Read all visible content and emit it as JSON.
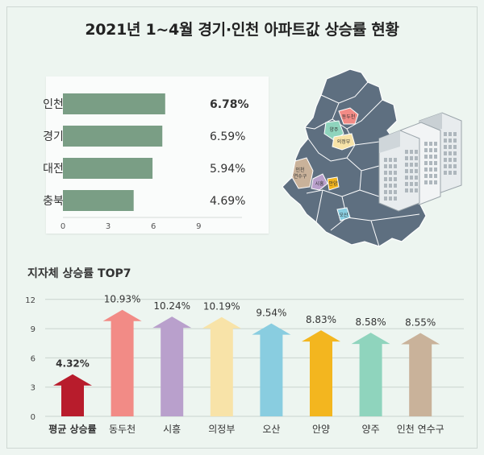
{
  "title": "2021년 1~4월 경기·인천 아파트값 상승률 현황",
  "chart_data": [
    {
      "type": "bar",
      "orientation": "horizontal",
      "categories": [
        "인천",
        "경기",
        "대전",
        "충북"
      ],
      "values": [
        6.78,
        6.59,
        5.94,
        4.69
      ],
      "value_labels": [
        "6.78%",
        "6.59%",
        "5.94%",
        "4.69%"
      ],
      "xlim": [
        0,
        10
      ],
      "xticks": [
        "0",
        "3",
        "6",
        "9"
      ],
      "color": "#7a9e85"
    },
    {
      "type": "bar",
      "title": "지자체 상승률 TOP7",
      "categories": [
        "평균 상승률",
        "동두천",
        "시흥",
        "의정부",
        "오산",
        "안양",
        "양주",
        "인천 연수구"
      ],
      "values": [
        4.32,
        10.93,
        10.24,
        10.19,
        9.54,
        8.83,
        8.58,
        8.55
      ],
      "value_labels": [
        "4.32%",
        "10.93%",
        "10.24%",
        "10.19%",
        "9.54%",
        "8.83%",
        "8.58%",
        "8.55%"
      ],
      "ylim": [
        0,
        12
      ],
      "yticks": [
        "0",
        "3",
        "6",
        "9",
        "12"
      ],
      "colors": [
        "#b81c2c",
        "#f28b86",
        "#b9a0cc",
        "#f8e3a8",
        "#89cde0",
        "#f3b61f",
        "#8fd4bd",
        "#c9b29a"
      ]
    }
  ],
  "map": {
    "labels": [
      "동두천",
      "양주",
      "의정부",
      "인천 연수구",
      "시흥",
      "안양",
      "오산"
    ],
    "colors": {
      "land": "#5e6f80",
      "border": "#ffffff",
      "building": "#d8dde0"
    }
  }
}
